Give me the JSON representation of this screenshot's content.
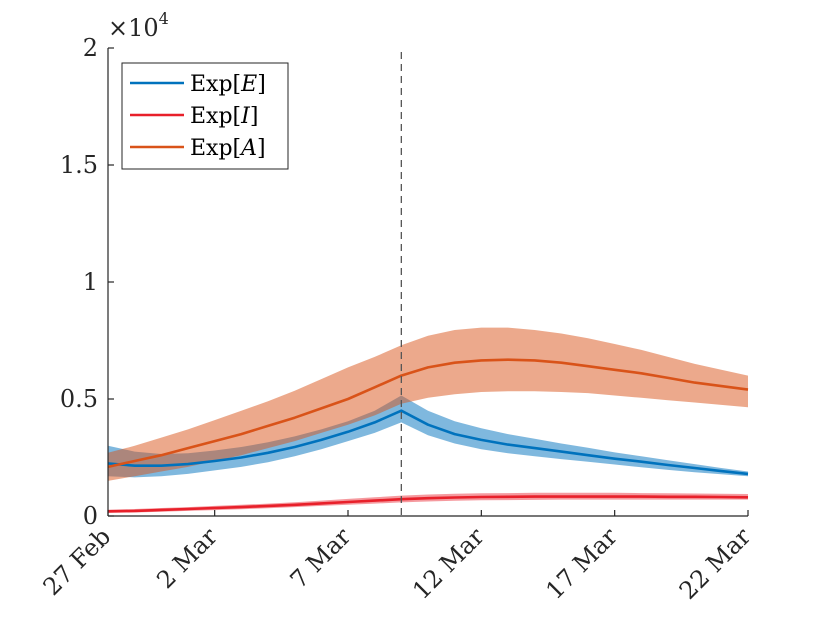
{
  "chart_data": {
    "type": "line",
    "title": "",
    "xlabel": "",
    "ylabel": "",
    "y_multiplier_label": "×10",
    "y_multiplier_exponent": "4",
    "x_start_day": 0,
    "x_end_day": 24,
    "xlim": [
      0,
      24
    ],
    "ylim": [
      0,
      2
    ],
    "yticks": [
      0,
      0.5,
      1,
      1.5,
      2
    ],
    "ytick_labels": [
      "0",
      "0.5",
      "1",
      "1.5",
      "2"
    ],
    "xticks": [
      0,
      4,
      9,
      14,
      19,
      24
    ],
    "xtick_labels": [
      "27 Feb",
      "2 Mar",
      "7 Mar",
      "12 Mar",
      "17 Mar",
      "22 Mar"
    ],
    "vline_day": 11,
    "grid": false,
    "legend_position": "top-left",
    "series": [
      {
        "name": "Exp[E]",
        "legend_main": "Exp[",
        "legend_var": "E",
        "legend_close": "]",
        "color": "#0072BD",
        "x": [
          0,
          1,
          2,
          3,
          4,
          5,
          6,
          7,
          8,
          9,
          10,
          11,
          12,
          13,
          14,
          15,
          16,
          17,
          18,
          19,
          20,
          21,
          22,
          23,
          24
        ],
        "mean": [
          0.225,
          0.215,
          0.215,
          0.222,
          0.235,
          0.25,
          0.27,
          0.295,
          0.325,
          0.36,
          0.4,
          0.45,
          0.39,
          0.35,
          0.325,
          0.305,
          0.29,
          0.275,
          0.26,
          0.245,
          0.232,
          0.218,
          0.205,
          0.192,
          0.18
        ],
        "lower": [
          0.17,
          0.165,
          0.17,
          0.18,
          0.195,
          0.21,
          0.23,
          0.255,
          0.285,
          0.32,
          0.355,
          0.4,
          0.345,
          0.31,
          0.285,
          0.268,
          0.255,
          0.243,
          0.232,
          0.22,
          0.208,
          0.197,
          0.187,
          0.178,
          0.17
        ],
        "upper": [
          0.3,
          0.275,
          0.265,
          0.268,
          0.28,
          0.295,
          0.315,
          0.34,
          0.37,
          0.405,
          0.45,
          0.515,
          0.45,
          0.405,
          0.375,
          0.35,
          0.33,
          0.31,
          0.292,
          0.272,
          0.255,
          0.238,
          0.222,
          0.205,
          0.19
        ]
      },
      {
        "name": "Exp[I]",
        "legend_main": "Exp[",
        "legend_var": "I",
        "legend_close": "]",
        "color": "#E8202A",
        "x": [
          0,
          1,
          2,
          3,
          4,
          5,
          6,
          7,
          8,
          9,
          10,
          11,
          12,
          13,
          14,
          15,
          16,
          17,
          18,
          19,
          20,
          21,
          22,
          23,
          24
        ],
        "mean": [
          0.02,
          0.022,
          0.026,
          0.03,
          0.034,
          0.038,
          0.043,
          0.048,
          0.054,
          0.06,
          0.066,
          0.072,
          0.076,
          0.079,
          0.081,
          0.082,
          0.083,
          0.083,
          0.083,
          0.083,
          0.083,
          0.082,
          0.082,
          0.081,
          0.08
        ],
        "lower": [
          0.013,
          0.015,
          0.018,
          0.022,
          0.025,
          0.029,
          0.033,
          0.038,
          0.043,
          0.048,
          0.053,
          0.058,
          0.062,
          0.065,
          0.067,
          0.068,
          0.069,
          0.07,
          0.07,
          0.07,
          0.07,
          0.07,
          0.07,
          0.07,
          0.07
        ],
        "upper": [
          0.027,
          0.03,
          0.034,
          0.038,
          0.043,
          0.048,
          0.053,
          0.059,
          0.066,
          0.073,
          0.08,
          0.087,
          0.092,
          0.095,
          0.097,
          0.098,
          0.099,
          0.099,
          0.099,
          0.099,
          0.098,
          0.097,
          0.096,
          0.095,
          0.094
        ]
      },
      {
        "name": "Exp[A]",
        "legend_main": "Exp[",
        "legend_var": "A",
        "legend_close": "]",
        "color": "#D95319",
        "x": [
          0,
          1,
          2,
          3,
          4,
          5,
          6,
          7,
          8,
          9,
          10,
          11,
          12,
          13,
          14,
          15,
          16,
          17,
          18,
          19,
          20,
          21,
          22,
          23,
          24
        ],
        "mean": [
          0.21,
          0.235,
          0.26,
          0.29,
          0.32,
          0.35,
          0.385,
          0.42,
          0.46,
          0.5,
          0.55,
          0.6,
          0.635,
          0.655,
          0.665,
          0.668,
          0.665,
          0.655,
          0.64,
          0.625,
          0.61,
          0.59,
          0.57,
          0.555,
          0.54
        ],
        "lower": [
          0.15,
          0.17,
          0.19,
          0.21,
          0.235,
          0.26,
          0.29,
          0.32,
          0.355,
          0.39,
          0.43,
          0.48,
          0.505,
          0.52,
          0.53,
          0.533,
          0.533,
          0.53,
          0.525,
          0.515,
          0.505,
          0.495,
          0.485,
          0.475,
          0.465
        ],
        "upper": [
          0.27,
          0.3,
          0.335,
          0.37,
          0.41,
          0.45,
          0.49,
          0.535,
          0.585,
          0.635,
          0.68,
          0.73,
          0.77,
          0.795,
          0.805,
          0.805,
          0.795,
          0.78,
          0.76,
          0.735,
          0.71,
          0.68,
          0.65,
          0.625,
          0.6
        ]
      }
    ]
  }
}
